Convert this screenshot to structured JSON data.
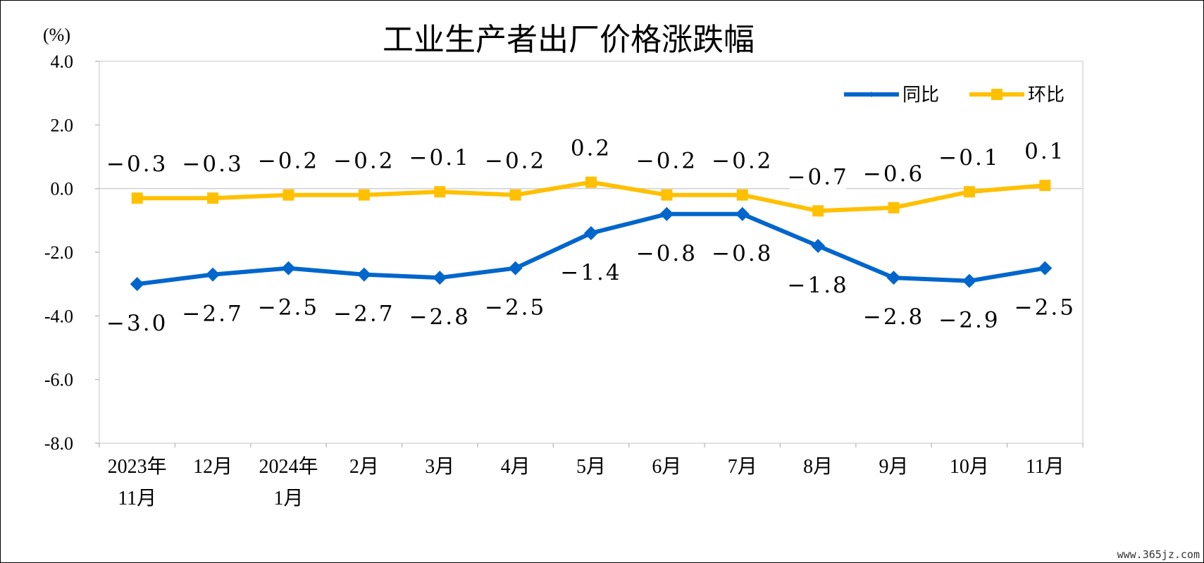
{
  "chart_data": {
    "type": "line",
    "title": "工业生产者出厂价格涨跌幅",
    "unit": "(%)",
    "categories": [
      [
        "2023年",
        "11月"
      ],
      [
        "12月"
      ],
      [
        "2024年",
        "1月"
      ],
      [
        "2月"
      ],
      [
        "3月"
      ],
      [
        "4月"
      ],
      [
        "5月"
      ],
      [
        "6月"
      ],
      [
        "7月"
      ],
      [
        "8月"
      ],
      [
        "9月"
      ],
      [
        "10月"
      ],
      [
        "11月"
      ]
    ],
    "series": [
      {
        "name": "同比",
        "color": "#0066CC",
        "marker": "diamond",
        "label_position": "below",
        "values": [
          -3.0,
          -2.7,
          -2.5,
          -2.7,
          -2.8,
          -2.5,
          -1.4,
          -0.8,
          -0.8,
          -1.8,
          -2.8,
          -2.9,
          -2.5
        ]
      },
      {
        "name": "环比",
        "color": "#FFC000",
        "marker": "square",
        "label_position": "above",
        "values": [
          -0.3,
          -0.3,
          -0.2,
          -0.2,
          -0.1,
          -0.2,
          0.2,
          -0.2,
          -0.2,
          -0.7,
          -0.6,
          -0.1,
          0.1
        ]
      }
    ],
    "ylim": [
      -8.0,
      4.0
    ],
    "yticks": [
      "4.0",
      "2.0",
      "0.0",
      "-2.0",
      "-4.0",
      "-6.0",
      "-8.0"
    ],
    "ytick_values": [
      4,
      2,
      0,
      -2,
      -4,
      -6,
      -8
    ],
    "data_labels": {
      "同比": [
        "−3.0",
        "−2.7",
        "−2.5",
        "−2.7",
        "−2.8",
        "−2.5",
        "−1.4",
        "−0.8",
        "−0.8",
        "−1.8",
        "−2.8",
        "−2.9",
        "−2.5"
      ],
      "环比": [
        "−0.3",
        "−0.3",
        "−0.2",
        "−0.2",
        "−0.1",
        "−0.2",
        "0.2",
        "−0.2",
        "−0.2",
        "−0.7",
        "−0.6",
        "−0.1",
        "0.1"
      ]
    },
    "legend_position": "top-right",
    "grid": false,
    "zero_line": true
  },
  "watermark": "www.365jz.com"
}
